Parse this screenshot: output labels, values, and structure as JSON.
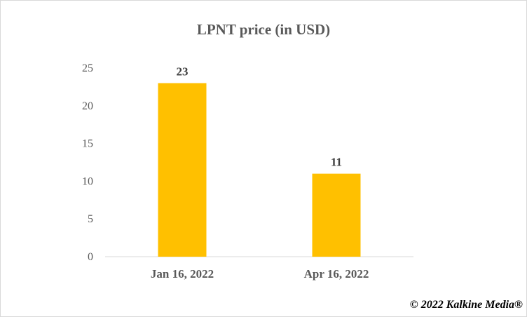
{
  "chart_data": {
    "type": "bar",
    "title": "LPNT price (in USD)",
    "categories": [
      "Jan 16, 2022",
      "Apr 16, 2022"
    ],
    "values": [
      23,
      11
    ],
    "data_labels": [
      "23",
      "11"
    ],
    "yticks": [
      "0",
      "5",
      "10",
      "15",
      "20",
      "25"
    ],
    "ylim": [
      0,
      25
    ],
    "xlabel": "",
    "ylabel": "",
    "grid": false,
    "bar_color": "#FFC000"
  },
  "credit": "© 2022 Kalkine Media®"
}
